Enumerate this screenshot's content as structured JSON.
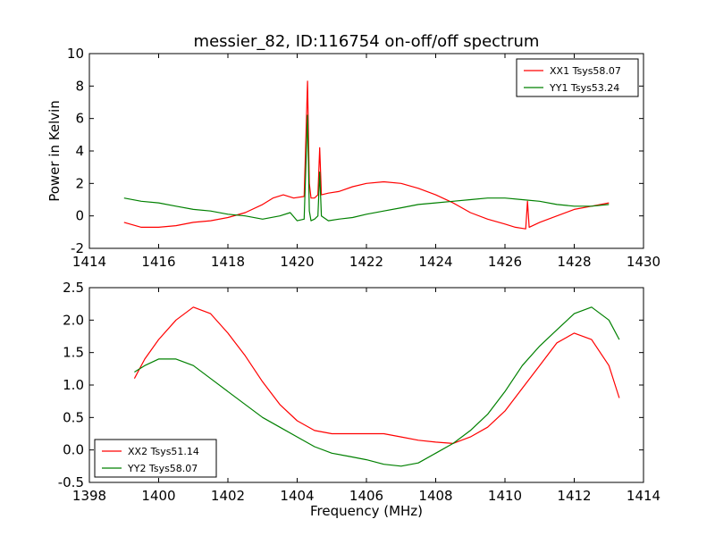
{
  "figure": {
    "title": "messier_82, ID:116754 on-off/off spectrum"
  },
  "chart_data": [
    {
      "type": "line",
      "title": "messier_82, ID:116754 on-off/off spectrum",
      "xlabel": "",
      "ylabel": "Power in Kelvin",
      "xlim": [
        1414,
        1430
      ],
      "ylim": [
        -2,
        10
      ],
      "xticks": [
        "1414",
        "1416",
        "1418",
        "1420",
        "1422",
        "1424",
        "1426",
        "1428",
        "1430"
      ],
      "yticks": [
        "-2",
        "0",
        "2",
        "4",
        "6",
        "8",
        "10"
      ],
      "grid": false,
      "legend": "upper-right",
      "series": [
        {
          "name": "XX1 Tsys58.07",
          "color": "#ff0000",
          "x": [
            1415.0,
            1415.5,
            1416.0,
            1416.5,
            1417.0,
            1417.5,
            1418.0,
            1418.5,
            1419.0,
            1419.3,
            1419.6,
            1419.9,
            1420.2,
            1420.3,
            1420.35,
            1420.4,
            1420.5,
            1420.6,
            1420.65,
            1420.7,
            1420.9,
            1421.2,
            1421.6,
            1422.0,
            1422.5,
            1423.0,
            1423.5,
            1424.0,
            1424.5,
            1425.0,
            1425.5,
            1426.0,
            1426.3,
            1426.6,
            1426.65,
            1426.7,
            1427.0,
            1427.5,
            1428.0,
            1428.5,
            1429.0
          ],
          "y": [
            -0.4,
            -0.7,
            -0.7,
            -0.6,
            -0.4,
            -0.3,
            -0.1,
            0.2,
            0.7,
            1.1,
            1.3,
            1.1,
            1.2,
            8.3,
            2.0,
            1.1,
            1.1,
            1.3,
            4.2,
            1.3,
            1.4,
            1.5,
            1.8,
            2.0,
            2.1,
            2.0,
            1.7,
            1.3,
            0.8,
            0.2,
            -0.2,
            -0.5,
            -0.7,
            -0.8,
            0.9,
            -0.7,
            -0.4,
            0.0,
            0.4,
            0.6,
            0.8
          ]
        },
        {
          "name": "YY1 Tsys53.24",
          "color": "#008000",
          "x": [
            1415.0,
            1415.5,
            1416.0,
            1416.5,
            1417.0,
            1417.5,
            1418.0,
            1418.5,
            1419.0,
            1419.5,
            1419.8,
            1420.0,
            1420.2,
            1420.3,
            1420.35,
            1420.4,
            1420.5,
            1420.6,
            1420.65,
            1420.7,
            1420.9,
            1421.2,
            1421.6,
            1422.0,
            1422.5,
            1423.0,
            1423.5,
            1424.0,
            1424.5,
            1425.0,
            1425.5,
            1426.0,
            1426.5,
            1427.0,
            1427.5,
            1428.0,
            1428.5,
            1429.0
          ],
          "y": [
            1.1,
            0.9,
            0.8,
            0.6,
            0.4,
            0.3,
            0.1,
            0.0,
            -0.2,
            0.0,
            0.2,
            -0.3,
            -0.2,
            6.2,
            0.3,
            -0.3,
            -0.2,
            0.0,
            2.7,
            0.0,
            -0.3,
            -0.2,
            -0.1,
            0.1,
            0.3,
            0.5,
            0.7,
            0.8,
            0.9,
            1.0,
            1.1,
            1.1,
            1.0,
            0.9,
            0.7,
            0.6,
            0.6,
            0.7
          ]
        }
      ]
    },
    {
      "type": "line",
      "title": "",
      "xlabel": "Frequency (MHz)",
      "ylabel": "",
      "xlim": [
        1398,
        1414
      ],
      "ylim": [
        -0.5,
        2.5
      ],
      "xticks": [
        "1398",
        "1400",
        "1402",
        "1404",
        "1406",
        "1408",
        "1410",
        "1412",
        "1414"
      ],
      "yticks": [
        "-0.5",
        "0.0",
        "0.5",
        "1.0",
        "1.5",
        "2.0",
        "2.5"
      ],
      "grid": false,
      "legend": "lower-left",
      "series": [
        {
          "name": "XX2 Tsys51.14",
          "color": "#ff0000",
          "x": [
            1399.3,
            1399.6,
            1400.0,
            1400.5,
            1401.0,
            1401.5,
            1402.0,
            1402.5,
            1403.0,
            1403.5,
            1404.0,
            1404.5,
            1405.0,
            1405.5,
            1406.0,
            1406.5,
            1407.0,
            1407.5,
            1408.0,
            1408.5,
            1409.0,
            1409.5,
            1410.0,
            1410.5,
            1411.0,
            1411.5,
            1412.0,
            1412.5,
            1413.0,
            1413.3
          ],
          "y": [
            1.1,
            1.4,
            1.7,
            2.0,
            2.2,
            2.1,
            1.8,
            1.45,
            1.05,
            0.7,
            0.45,
            0.3,
            0.25,
            0.25,
            0.25,
            0.25,
            0.2,
            0.15,
            0.12,
            0.1,
            0.2,
            0.35,
            0.6,
            0.95,
            1.3,
            1.65,
            1.8,
            1.7,
            1.3,
            0.8
          ]
        },
        {
          "name": "YY2 Tsys58.07",
          "color": "#008000",
          "x": [
            1399.3,
            1399.6,
            1400.0,
            1400.5,
            1401.0,
            1401.5,
            1402.0,
            1402.5,
            1403.0,
            1403.5,
            1404.0,
            1404.5,
            1405.0,
            1405.5,
            1406.0,
            1406.5,
            1407.0,
            1407.5,
            1408.0,
            1408.5,
            1409.0,
            1409.5,
            1410.0,
            1410.5,
            1411.0,
            1411.5,
            1412.0,
            1412.5,
            1413.0,
            1413.3
          ],
          "y": [
            1.2,
            1.3,
            1.4,
            1.4,
            1.3,
            1.1,
            0.9,
            0.7,
            0.5,
            0.35,
            0.2,
            0.05,
            -0.05,
            -0.1,
            -0.15,
            -0.22,
            -0.25,
            -0.2,
            -0.05,
            0.1,
            0.3,
            0.55,
            0.9,
            1.3,
            1.6,
            1.85,
            2.1,
            2.2,
            2.0,
            1.7
          ]
        }
      ]
    }
  ]
}
